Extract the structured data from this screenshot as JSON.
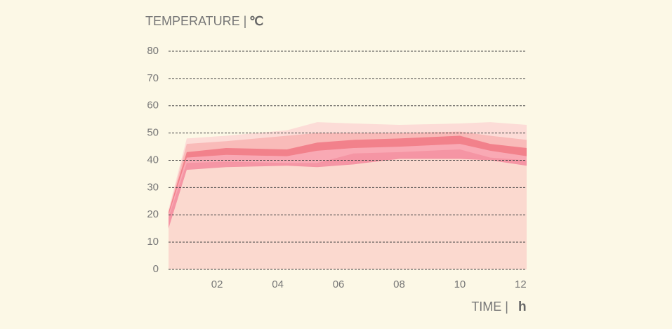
{
  "chart_data": {
    "type": "area",
    "ylabel": "TEMPERATURE |",
    "yunit": "℃",
    "xlabel": "TIME |",
    "xunit": "h",
    "x": [
      0.4,
      1,
      2.3,
      4.3,
      5.3,
      6.5,
      8,
      10,
      11,
      12.2
    ],
    "series": [
      {
        "color": "#fcdcd7",
        "values": [
          22,
          48,
          49,
          51,
          54,
          53.5,
          53,
          53.5,
          54,
          53
        ]
      },
      {
        "color": "#f9bbb9",
        "values": [
          21,
          46,
          47,
          49,
          50,
          50,
          50,
          50.5,
          49,
          47.5
        ]
      },
      {
        "color": "#f2818b",
        "values": [
          21,
          43,
          44.5,
          44,
          46.5,
          47.5,
          48,
          49,
          46,
          44.5
        ]
      },
      {
        "color": "#f9a9b4",
        "values": [
          20,
          41,
          42,
          41.5,
          43.5,
          44.5,
          45,
          46,
          43.5,
          41.5
        ]
      },
      {
        "color": "#f595a4",
        "values": [
          19,
          39,
          39.5,
          39,
          39,
          42.5,
          43,
          44,
          41,
          40
        ]
      },
      {
        "color": "#fbd9cf",
        "values": [
          15,
          36.5,
          37.5,
          38,
          37.5,
          38.5,
          40.5,
          40.5,
          40,
          38
        ]
      }
    ],
    "xlim": [
      0.4,
      12.2
    ],
    "ylim": [
      0,
      80
    ],
    "xticks": [
      {
        "value": 2,
        "label": "02"
      },
      {
        "value": 4,
        "label": "04"
      },
      {
        "value": 6,
        "label": "06"
      },
      {
        "value": 8,
        "label": "08"
      },
      {
        "value": 10,
        "label": "10"
      },
      {
        "value": 12,
        "label": "12"
      }
    ],
    "yticks": [
      0,
      10,
      20,
      30,
      40,
      50,
      60,
      70,
      80
    ],
    "grid": true
  }
}
